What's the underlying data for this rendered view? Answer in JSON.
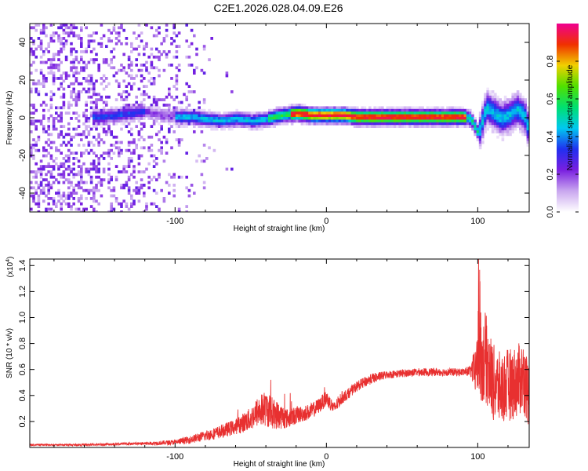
{
  "title": "C2E1.2026.028.04.09.E26",
  "chart_data": [
    {
      "type": "heatmap",
      "xlabel": "Height of straight line (km)",
      "ylabel": "Frequency (Hz)",
      "xlim": [
        -196,
        134
      ],
      "ylim": [
        -50,
        50
      ],
      "x_ticks": [
        -100,
        0,
        100
      ],
      "x_tick_labels": [
        "-100",
        "0",
        "100"
      ],
      "y_ticks": [
        -40,
        -20,
        0,
        20,
        40
      ],
      "y_tick_labels": [
        "-40",
        "-20",
        "0",
        "20",
        "40"
      ],
      "colorbar": {
        "label": "Normalized spectral amplitude",
        "range": [
          0,
          1
        ],
        "ticks": [
          0.0,
          0.2,
          0.4,
          0.6,
          0.8
        ],
        "tick_labels": [
          "0.0",
          "0.2",
          "0.4",
          "0.6",
          "0.8"
        ],
        "colors": [
          "#ffffff",
          "#c9a7ef",
          "#7a1fe0",
          "#2030f0",
          "#00c8f0",
          "#00e070",
          "#50e000",
          "#f0d000",
          "#f03000",
          "#f00090"
        ]
      },
      "center_frequency_track": {
        "x": [
          -150,
          -140,
          -130,
          -120,
          -110,
          -100,
          -90,
          -80,
          -70,
          -60,
          -50,
          -40,
          -30,
          -20,
          -10,
          0,
          10,
          20,
          30,
          40,
          50,
          60,
          70,
          80,
          90,
          95,
          100,
          105,
          110,
          115,
          120,
          125,
          130,
          134
        ],
        "y": [
          1,
          2,
          3,
          4,
          2,
          1,
          1,
          0,
          -1,
          0,
          -1,
          0,
          2,
          3,
          2,
          2,
          2,
          1,
          1,
          1,
          1,
          1,
          1,
          1,
          1,
          0,
          -8,
          6,
          3,
          0,
          2,
          5,
          2,
          -8
        ]
      }
    },
    {
      "type": "line",
      "xlabel": "Height of straight line (km)",
      "ylabel": "SNR (10 * v/v)",
      "y_scale_label": "(x10",
      "y_scale_exponent": "4",
      "xlim": [
        -196,
        134
      ],
      "ylim": [
        0,
        1.45
      ],
      "x_ticks": [
        -100,
        0,
        100
      ],
      "x_tick_labels": [
        "-100",
        "0",
        "100"
      ],
      "y_ticks": [
        0.2,
        0.4,
        0.6,
        0.8,
        1.0,
        1.2,
        1.4
      ],
      "y_tick_labels": [
        "0.2",
        "0.4",
        "0.6",
        "0.8",
        "1.0",
        "1.2",
        "1.4"
      ],
      "series": [
        {
          "color": "#e83030",
          "x": [
            -196,
            -180,
            -160,
            -140,
            -120,
            -100,
            -90,
            -80,
            -70,
            -60,
            -50,
            -45,
            -40,
            -35,
            -30,
            -25,
            -20,
            -15,
            -10,
            -5,
            0,
            5,
            10,
            15,
            20,
            30,
            40,
            50,
            60,
            70,
            80,
            90,
            95,
            100,
            105,
            110,
            115,
            120,
            125,
            130,
            134
          ],
          "y": [
            0.02,
            0.02,
            0.02,
            0.025,
            0.03,
            0.04,
            0.06,
            0.09,
            0.12,
            0.16,
            0.22,
            0.28,
            0.3,
            0.26,
            0.24,
            0.22,
            0.25,
            0.26,
            0.28,
            0.32,
            0.38,
            0.3,
            0.38,
            0.42,
            0.47,
            0.53,
            0.56,
            0.57,
            0.58,
            0.58,
            0.58,
            0.58,
            0.59,
            0.6,
            0.7,
            0.5,
            0.45,
            0.48,
            0.5,
            0.55,
            0.4
          ],
          "fluctuation_amplitude": [
            0.008,
            0.006,
            0.008,
            0.01,
            0.012,
            0.02,
            0.03,
            0.04,
            0.05,
            0.06,
            0.09,
            0.12,
            0.14,
            0.12,
            0.1,
            0.07,
            0.07,
            0.06,
            0.06,
            0.06,
            0.06,
            0.05,
            0.05,
            0.04,
            0.04,
            0.04,
            0.03,
            0.03,
            0.03,
            0.03,
            0.03,
            0.03,
            0.04,
            0.25,
            0.35,
            0.3,
            0.28,
            0.28,
            0.28,
            0.28,
            0.25
          ]
        }
      ]
    }
  ]
}
